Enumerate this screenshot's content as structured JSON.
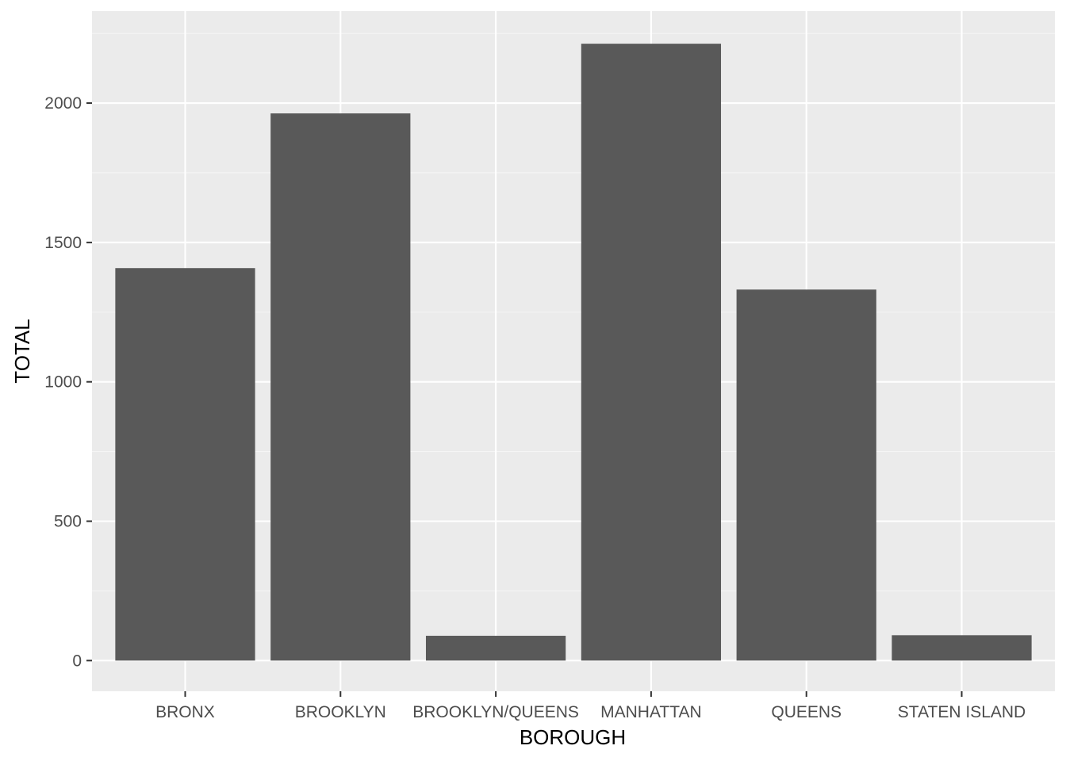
{
  "chart_data": {
    "type": "bar",
    "title": "",
    "xlabel": "BOROUGH",
    "ylabel": "TOTAL",
    "categories": [
      "BRONX",
      "BROOKLYN",
      "BROOKLYN/QUEENS",
      "MANHATTAN",
      "QUEENS",
      "STATEN ISLAND"
    ],
    "values": [
      1408,
      1963,
      89,
      2213,
      1331,
      91
    ],
    "ylim": [
      -110,
      2330
    ],
    "y_ticks": [
      0,
      500,
      1000,
      1500,
      2000
    ],
    "y_tick_labels": [
      "0",
      "500",
      "1000",
      "1500",
      "2000"
    ],
    "grid": true,
    "legend": "none"
  },
  "colors": {
    "panel_background": "#ebebeb",
    "grid_major": "#ffffff",
    "grid_minor": "#f5f5f5",
    "bar_fill": "#595959",
    "tick_text": "#4d4d4d",
    "tick_mark": "#333333",
    "axis_title": "#000000"
  }
}
